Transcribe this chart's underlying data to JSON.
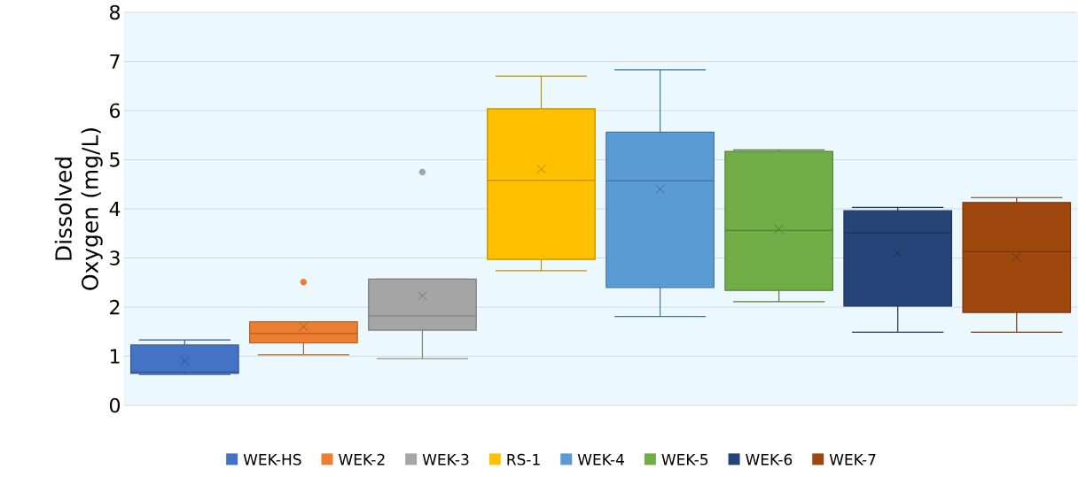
{
  "chart_data": {
    "type": "box",
    "ylabel": "Dissolved Oxygen (mg/L)",
    "categories": [
      null
    ],
    "ylim": [
      0,
      8
    ],
    "yticks": [
      0,
      1,
      2,
      3,
      4,
      5,
      6,
      7,
      8
    ],
    "grid": "y",
    "legend": "bottom",
    "series": [
      {
        "name": "WEK-HS",
        "color": "#4472c4",
        "boxes": [
          {
            "low": 0.63,
            "q1": 0.65,
            "median": 0.68,
            "q3": 1.23,
            "high": 1.33,
            "mean": 0.9
          }
        ]
      },
      {
        "name": "WEK-2",
        "color": "#ed7d31",
        "boxes": [
          {
            "low": 1.03,
            "q1": 1.27,
            "median": 1.46,
            "q3": 1.7,
            "high": 1.7,
            "mean": 1.6,
            "outliers": [
              2.51
            ]
          }
        ]
      },
      {
        "name": "WEK-3",
        "color": "#a5a5a5",
        "boxes": [
          {
            "low": 0.95,
            "q1": 1.53,
            "median": 1.82,
            "q3": 2.57,
            "high": 2.57,
            "mean": 2.23,
            "outliers": [
              4.75
            ]
          }
        ]
      },
      {
        "name": "RS-1",
        "color": "#ffc000",
        "boxes": [
          {
            "low": 2.74,
            "q1": 2.97,
            "median": 4.58,
            "q3": 6.04,
            "high": 6.7,
            "mean": 4.81
          }
        ]
      },
      {
        "name": "WEK-4",
        "color": "#5b9bd5",
        "boxes": [
          {
            "low": 1.81,
            "q1": 2.4,
            "median": 4.57,
            "q3": 5.56,
            "high": 6.83,
            "mean": 4.4
          }
        ]
      },
      {
        "name": "WEK-5",
        "color": "#70ad47",
        "boxes": [
          {
            "low": 2.11,
            "q1": 2.34,
            "median": 3.56,
            "q3": 5.17,
            "high": 5.2,
            "mean": 3.59
          }
        ]
      },
      {
        "name": "WEK-6",
        "color": "#264478",
        "boxes": [
          {
            "low": 1.49,
            "q1": 2.02,
            "median": 3.51,
            "q3": 3.96,
            "high": 4.03,
            "mean": 3.1
          }
        ]
      },
      {
        "name": "WEK-7",
        "color": "#9e480e",
        "boxes": [
          {
            "low": 1.49,
            "q1": 1.89,
            "median": 3.13,
            "q3": 4.13,
            "high": 4.23,
            "mean": 3.01
          }
        ]
      }
    ]
  }
}
